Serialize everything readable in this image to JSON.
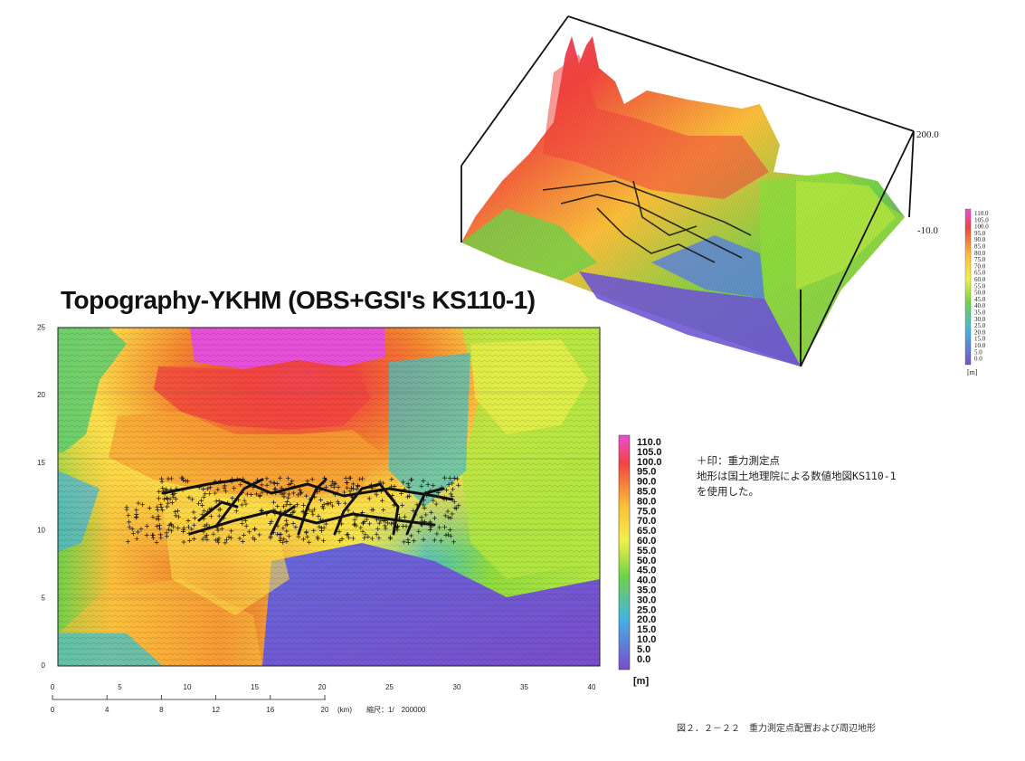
{
  "title": "Topography-YKHM (OBS+GSI's KS110-1)",
  "map": {
    "x_ticks": [
      "0",
      "5",
      "10",
      "15",
      "20",
      "25",
      "30",
      "35",
      "40"
    ],
    "y_ticks": [
      "0",
      "5",
      "10",
      "15",
      "20",
      "25"
    ],
    "scale_ticks": [
      "0",
      "4",
      "8",
      "12",
      "16",
      "20"
    ],
    "scale_unit": "(km)",
    "scale_ratio": "縮尺：1/　200000"
  },
  "legend": {
    "unit": "[m]",
    "labels": [
      "110.0",
      "105.0",
      "100.0",
      "95.0",
      "90.0",
      "85.0",
      "80.0",
      "75.0",
      "70.0",
      "65.0",
      "60.0",
      "55.0",
      "50.0",
      "45.0",
      "40.0",
      "35.0",
      "30.0",
      "25.0",
      "20.0",
      "15.0",
      "10.0",
      "5.0",
      "0.0"
    ],
    "colors": [
      "#e84fd8",
      "#ee4a9a",
      "#f2443e",
      "#f05a2e",
      "#f06c2a",
      "#f5862e",
      "#f8a232",
      "#fbbf3a",
      "#fde048",
      "#f0f04a",
      "#d4ee46",
      "#b4e640",
      "#90dc3c",
      "#70d248",
      "#5acc70",
      "#4cc69a",
      "#48c0c0",
      "#44b4e0",
      "#4c9ae8",
      "#5a80e4",
      "#6668dc",
      "#7058d4",
      "#7a4ccc"
    ]
  },
  "view3d": {
    "z_top": "200.0",
    "z_bottom": "-10.0",
    "legend_unit": "[m]"
  },
  "notes": {
    "line1": "＋印：重力測定点",
    "line2": "地形は国土地理院による数値地図KS110-1",
    "line3": "を使用した。"
  },
  "caption": "図２．２－２２　重力測定点配置および周辺地形"
}
